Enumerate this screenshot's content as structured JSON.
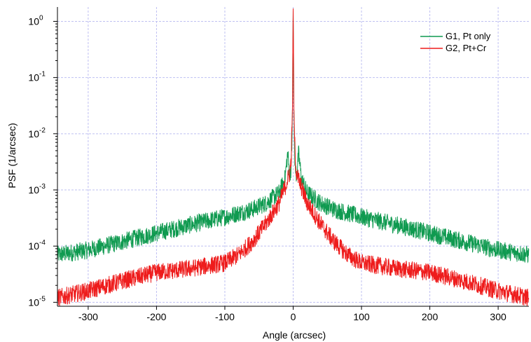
{
  "chart_data": {
    "type": "line",
    "title": "",
    "xlabel": "Angle (arcsec)",
    "ylabel": "PSF (1/arcsec)",
    "xlim": [
      -345,
      345
    ],
    "ylim": [
      8.5e-06,
      1.8
    ],
    "yscale": "log",
    "grid": true,
    "legend": "top-right",
    "x_ticks": [
      {
        "value": -300,
        "label": "-300"
      },
      {
        "value": -200,
        "label": "-200"
      },
      {
        "value": -100,
        "label": "-100"
      },
      {
        "value": 0,
        "label": "0"
      },
      {
        "value": 100,
        "label": "100"
      },
      {
        "value": 200,
        "label": "200"
      },
      {
        "value": 300,
        "label": "300"
      }
    ],
    "y_ticks": [
      {
        "value": 1,
        "base": "10",
        "exp": "0"
      },
      {
        "value": 0.1,
        "base": "10",
        "exp": "-1"
      },
      {
        "value": 0.01,
        "base": "10",
        "exp": "-2"
      },
      {
        "value": 0.001,
        "base": "10",
        "exp": "-3"
      },
      {
        "value": 0.0001,
        "base": "10",
        "exp": "-4"
      },
      {
        "value": 1e-05,
        "base": "10",
        "exp": "-5"
      }
    ],
    "series": [
      {
        "name": "G1, Pt only",
        "color": "#0f9a50",
        "x": [
          -345,
          -300,
          -250,
          -200,
          -150,
          -100,
          -60,
          -40,
          -20,
          -12,
          -8,
          -5,
          -3,
          -2,
          -1,
          -0.5,
          0,
          0.5,
          1,
          2,
          3,
          5,
          8,
          12,
          20,
          40,
          60,
          100,
          150,
          200,
          250,
          300,
          345
        ],
        "y": [
          7e-05,
          8.5e-05,
          0.00012,
          0.00017,
          0.00024,
          0.00033,
          0.00045,
          0.00058,
          0.0009,
          0.0016,
          0.0045,
          0.0018,
          0.0025,
          0.005,
          0.03,
          0.3,
          1.6,
          0.3,
          0.03,
          0.005,
          0.0025,
          0.0018,
          0.0045,
          0.0016,
          0.0009,
          0.00058,
          0.00045,
          0.00033,
          0.00024,
          0.00017,
          0.00012,
          8.5e-05,
          7e-05
        ]
      },
      {
        "name": "G2, Pt+Cr",
        "color": "#ee1c1c",
        "x": [
          -345,
          -300,
          -250,
          -200,
          -150,
          -100,
          -80,
          -60,
          -40,
          -20,
          -10,
          -5,
          -3,
          -1,
          -0.5,
          0,
          0.5,
          1,
          3,
          5,
          10,
          20,
          40,
          60,
          80,
          100,
          150,
          200,
          250,
          300,
          345
        ],
        "y": [
          1.2e-05,
          1.6e-05,
          2.4e-05,
          3.4e-05,
          4e-05,
          5e-05,
          7e-05,
          0.00012,
          0.00025,
          0.0006,
          0.0013,
          0.002,
          0.0035,
          0.03,
          0.3,
          1.7,
          0.3,
          0.03,
          0.0035,
          0.002,
          0.0013,
          0.0006,
          0.00025,
          0.00012,
          7e-05,
          5e-05,
          4e-05,
          3.4e-05,
          2.4e-05,
          1.6e-05,
          1.2e-05
        ]
      }
    ]
  }
}
